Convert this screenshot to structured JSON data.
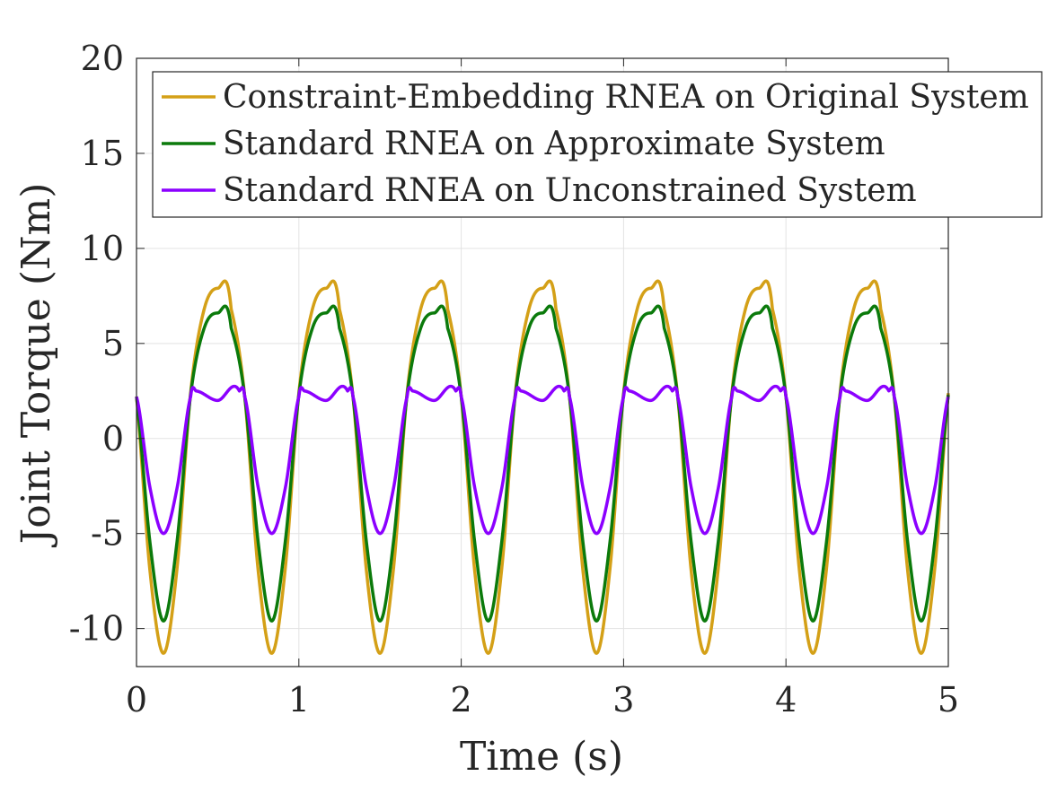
{
  "chart_data": {
    "type": "line",
    "xlabel": "Time (s)",
    "ylabel": "Joint Torque (Nm)",
    "xlim": [
      0,
      5
    ],
    "ylim": [
      -12,
      20
    ],
    "x_ticks": [
      "0",
      "1",
      "2",
      "3",
      "4",
      "5"
    ],
    "y_ticks": [
      "-10",
      "-5",
      "0",
      "5",
      "10",
      "15",
      "20"
    ],
    "grid": true,
    "legend_position": "top-right",
    "period_s": 0.6667,
    "series": [
      {
        "name": "Constraint-Embedding RNEA on Original System",
        "color": "#D4A017",
        "x": [
          0.0,
          0.0833,
          0.1667,
          0.25,
          0.3333,
          0.4167,
          0.5,
          0.5833,
          0.6667
        ],
        "values": [
          2.2,
          -7.0,
          -11.3,
          -6.8,
          2.4,
          6.8,
          7.9,
          6.8,
          2.2
        ]
      },
      {
        "name": "Standard RNEA on Approximate System",
        "color": "#0B7A0B",
        "x": [
          0.0,
          0.0833,
          0.1667,
          0.25,
          0.3333,
          0.4167,
          0.5,
          0.5833,
          0.6667
        ],
        "values": [
          2.2,
          -5.5,
          -9.6,
          -5.4,
          2.3,
          5.8,
          6.6,
          5.8,
          2.2
        ]
      },
      {
        "name": "Standard RNEA on Unconstrained System",
        "color": "#8B00FF",
        "x": [
          0.0,
          0.0833,
          0.1667,
          0.25,
          0.3333,
          0.3667,
          0.5,
          0.6333,
          0.6667
        ],
        "values": [
          2.2,
          -2.6,
          -5.0,
          -2.6,
          2.2,
          2.5,
          2.0,
          2.5,
          2.2
        ]
      }
    ]
  }
}
